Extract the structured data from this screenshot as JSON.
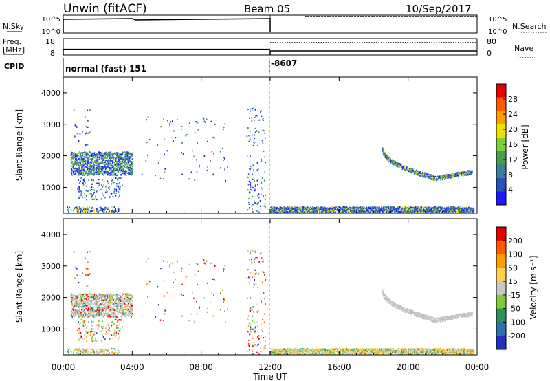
{
  "header": {
    "station": "Unwin (fitACF)",
    "beam": "Beam 05",
    "date": "10/Sep/2017"
  },
  "status_panel": {
    "nsky_label": "N.Sky",
    "nsky_ticks": [
      "10^5",
      "10^0"
    ],
    "nsearch_label": "N.Search",
    "nsearch_ticks": [
      "10^5",
      "10^0"
    ],
    "freq_label_1": "Freq.",
    "freq_label_2": "[MHz]",
    "freq_ticks": [
      "18",
      "8"
    ],
    "nave_label": "Nave",
    "nave_ticks": [
      "80",
      "0"
    ],
    "cpid_label": "CPID",
    "cpid_segments": [
      {
        "start_hour": 0,
        "text": "normal (fast) 151"
      },
      {
        "start_hour": 12,
        "text": "-8607"
      }
    ],
    "freq_mhz": [
      {
        "from_hour": 0,
        "to_hour": 12,
        "value": 11.5
      },
      {
        "from_hour": 12,
        "to_hour": 24,
        "value": 10.5
      }
    ],
    "nave": [
      {
        "from_hour": 12,
        "to_hour": 24,
        "value": 60
      }
    ]
  },
  "chart_data": [
    {
      "type": "heatmap",
      "xlabel": "Time UT",
      "ylabel": "Slant Range [km]",
      "x_ticks": [
        "00:00",
        "04:00",
        "08:00",
        "12:00",
        "16:00",
        "20:00",
        "00:00"
      ],
      "xlim_hours": [
        0,
        24
      ],
      "y_ticks": [
        "4000",
        "3000",
        "2000",
        "1000"
      ],
      "ylim_km": [
        180,
        4500
      ],
      "colorbar": {
        "label": "Power [dB]",
        "ticks": [
          "28",
          "24",
          "20",
          "16",
          "12",
          "8",
          "4"
        ],
        "range": [
          0,
          32
        ],
        "colors": [
          "#1919ff",
          "#2a52b8",
          "#3a7fa0",
          "#48a048",
          "#7ed03a",
          "#f0e000",
          "#ff9d00",
          "#ff5a00",
          "#e30000"
        ]
      }
    },
    {
      "type": "heatmap",
      "xlabel": "Time UT",
      "ylabel": "Slant Range [km]",
      "x_ticks": [
        "00:00",
        "04:00",
        "08:00",
        "12:00",
        "16:00",
        "20:00",
        "00:00"
      ],
      "xlim_hours": [
        0,
        24
      ],
      "y_ticks": [
        "4000",
        "3000",
        "2000",
        "1000"
      ],
      "ylim_km": [
        180,
        4500
      ],
      "colorbar": {
        "label": "Velocity [m s⁻¹]",
        "ticks": [
          "200",
          "100",
          "50",
          "15",
          "-15",
          "-50",
          "-100",
          "-200"
        ],
        "colors": [
          "#2030c0",
          "#2f6fb0",
          "#2f8f5f",
          "#7fcc3a",
          "#c8c8c8",
          "#ffd24d",
          "#ff9d00",
          "#ff5a00",
          "#e30000"
        ]
      }
    }
  ],
  "scatter_regions": [
    {
      "t0": 0.4,
      "t1": 4.0,
      "r0": 1380,
      "r1": 2120,
      "density": 1.0,
      "kind": "main"
    },
    {
      "t0": 0.2,
      "t1": 3.2,
      "r0": 200,
      "r1": 380,
      "density": 0.35,
      "kind": "ground"
    },
    {
      "t0": 0.8,
      "t1": 3.4,
      "r0": 600,
      "r1": 1300,
      "density": 0.12,
      "kind": "sparse"
    },
    {
      "t0": 10.6,
      "t1": 11.7,
      "r0": 200,
      "r1": 3500,
      "density": 0.05,
      "kind": "sparse"
    },
    {
      "t0": 12.0,
      "t1": 23.8,
      "r0": 200,
      "r1": 380,
      "density": 0.9,
      "kind": "ground"
    },
    {
      "t0": 0.5,
      "t1": 1.6,
      "r0": 2300,
      "r1": 3500,
      "density": 0.03,
      "kind": "sparse"
    },
    {
      "t0": 4.5,
      "t1": 9.5,
      "r0": 1200,
      "r1": 3300,
      "density": 0.012,
      "kind": "sparse"
    }
  ],
  "arc_region": {
    "t0": 18.5,
    "t1": 23.7,
    "r_start": 2200,
    "r_min": 1280,
    "r_end": 1480,
    "t_min": 21.6
  }
}
